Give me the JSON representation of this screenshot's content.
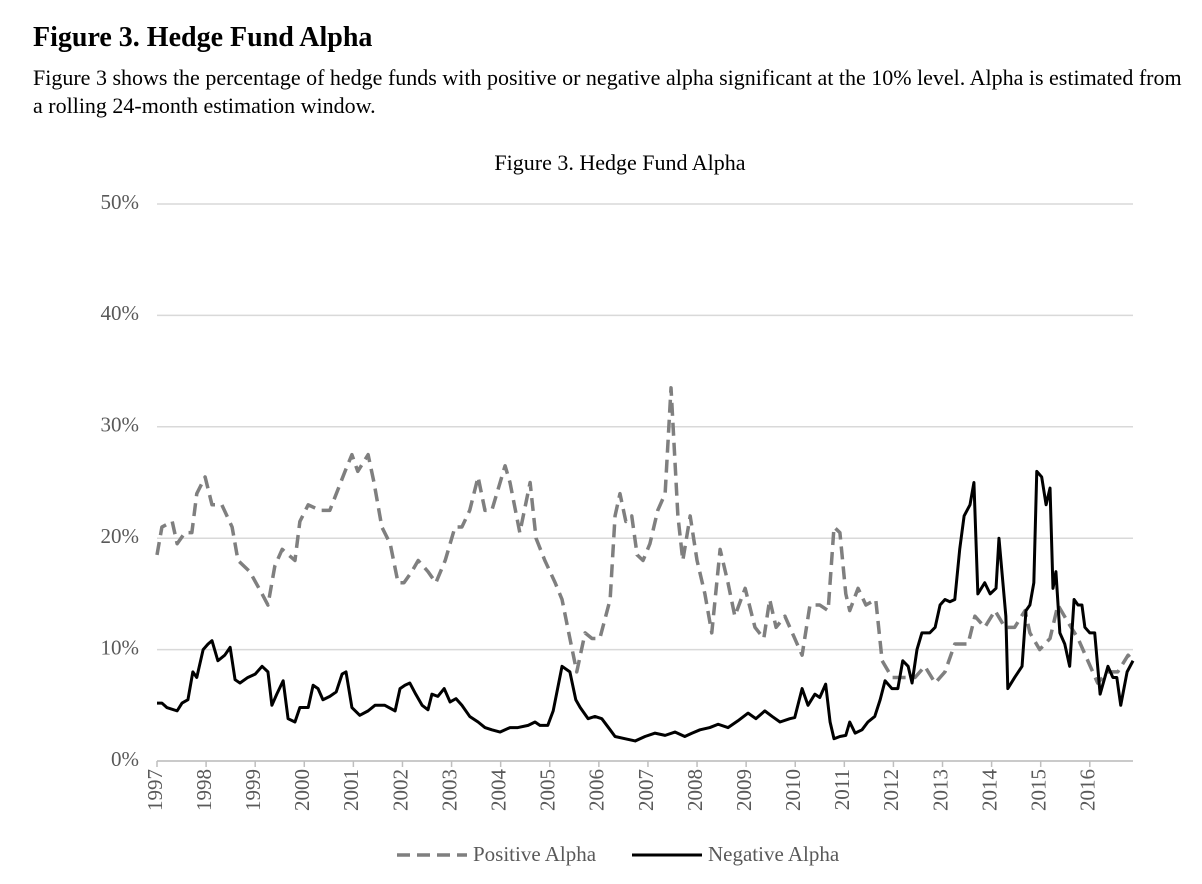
{
  "header": {
    "title": "Figure 3. Hedge Fund Alpha",
    "description": "Figure 3 shows the percentage of hedge funds with positive or negative alpha significant at the 10% level. Alpha is estimated from a rolling 24-month estimation window."
  },
  "chart_data": {
    "type": "line",
    "title": "Figure 3. Hedge Fund Alpha",
    "xlim": [
      1997,
      2016.88
    ],
    "xticks": [
      1997,
      1998,
      1999,
      2000,
      2001,
      2002,
      2003,
      2004,
      2005,
      2006,
      2007,
      2008,
      2009,
      2010,
      2011,
      2012,
      2013,
      2014,
      2015,
      2016
    ],
    "ylim": [
      0,
      50
    ],
    "yticks": [
      {
        "value": 0,
        "label": "0%"
      },
      {
        "value": 10,
        "label": "10%"
      },
      {
        "value": 20,
        "label": "20%"
      },
      {
        "value": 30,
        "label": "30%"
      },
      {
        "value": 40,
        "label": "40%"
      },
      {
        "value": 50,
        "label": "50%"
      }
    ],
    "grid": true,
    "legend": "bottom",
    "series": [
      {
        "name": "Positive Alpha",
        "color": "#7f7f7f",
        "line_style": "dashed",
        "x": [
          1997.0,
          1997.1,
          1997.31,
          1997.41,
          1997.57,
          1997.71,
          1997.81,
          1997.98,
          1998.12,
          1998.32,
          1998.53,
          1998.65,
          1998.89,
          1999.14,
          1999.26,
          1999.4,
          1999.55,
          1999.81,
          1999.91,
          2000.08,
          2000.32,
          2000.52,
          2000.83,
          2000.97,
          2001.09,
          2001.3,
          2001.42,
          2001.58,
          2001.75,
          2001.91,
          2002.03,
          2002.19,
          2002.32,
          2002.52,
          2002.68,
          2002.87,
          2003.07,
          2003.21,
          2003.37,
          2003.54,
          2003.68,
          2003.82,
          2004.09,
          2004.19,
          2004.39,
          2004.6,
          2004.72,
          2004.9,
          2005.11,
          2005.25,
          2005.41,
          2005.55,
          2005.72,
          2005.86,
          2006.02,
          2006.23,
          2006.33,
          2006.43,
          2006.55,
          2006.67,
          2006.78,
          2006.9,
          2007.04,
          2007.2,
          2007.35,
          2007.47,
          2007.61,
          2007.71,
          2007.86,
          2008.0,
          2008.16,
          2008.3,
          2008.47,
          2008.63,
          2008.77,
          2008.98,
          2009.18,
          2009.36,
          2009.48,
          2009.61,
          2009.79,
          2009.99,
          2010.14,
          2010.3,
          2010.5,
          2010.67,
          2010.79,
          2010.91,
          2011.03,
          2011.11,
          2011.28,
          2011.44,
          2011.64,
          2011.77,
          2011.97,
          2012.23,
          2012.44,
          2012.64,
          2012.85,
          2013.05,
          2013.25,
          2013.52,
          2013.66,
          2013.86,
          2014.07,
          2014.27,
          2014.47,
          2014.68,
          2014.78,
          2014.98,
          2015.19,
          2015.35,
          2015.55,
          2015.76,
          2015.96,
          2016.16,
          2016.37,
          2016.57,
          2016.78,
          2016.88
        ],
        "values": [
          18.5,
          21,
          21.5,
          19.5,
          20.5,
          20.5,
          24,
          25.5,
          23,
          23,
          21,
          18,
          17,
          15,
          14,
          17.5,
          19,
          18,
          21.5,
          23,
          22.5,
          22.5,
          26,
          27.5,
          26,
          27.5,
          25,
          21,
          19.5,
          16,
          16,
          17,
          18,
          17,
          16,
          18,
          21,
          21,
          22.5,
          25.5,
          22.5,
          22.5,
          26.5,
          25,
          20.5,
          25,
          20,
          18,
          16,
          14.5,
          11,
          8,
          11.5,
          11,
          11,
          14.5,
          22,
          24,
          21.5,
          22,
          18.5,
          18,
          19.5,
          22.5,
          24,
          33.5,
          22,
          18,
          22,
          18,
          15,
          11.5,
          19,
          16,
          13,
          15.5,
          12,
          11,
          14.5,
          12,
          13,
          11,
          9.5,
          14,
          14,
          13.5,
          21,
          20.5,
          15,
          13.5,
          15.5,
          14,
          14.5,
          9,
          7.5,
          7.5,
          7.5,
          8.5,
          7,
          8,
          10.5,
          10.5,
          13,
          12,
          13.5,
          12,
          12,
          13.5,
          11.5,
          10,
          11,
          14,
          12.5,
          11,
          9,
          7,
          8,
          8,
          9.5,
          9
        ]
      },
      {
        "name": "Negative Alpha",
        "color": "#000000",
        "line_style": "solid",
        "x": [
          1997.0,
          1997.1,
          1997.2,
          1997.41,
          1997.51,
          1997.63,
          1997.73,
          1997.81,
          1997.94,
          1998.04,
          1998.12,
          1998.24,
          1998.38,
          1998.49,
          1998.59,
          1998.69,
          1998.85,
          1999.0,
          1999.14,
          1999.26,
          1999.34,
          1999.44,
          1999.57,
          1999.67,
          1999.81,
          1999.91,
          2000.08,
          2000.18,
          2000.28,
          2000.38,
          2000.52,
          2000.65,
          2000.77,
          2000.85,
          2000.97,
          2001.13,
          2001.3,
          2001.44,
          2001.64,
          2001.85,
          2001.95,
          2002.05,
          2002.15,
          2002.27,
          2002.4,
          2002.52,
          2002.6,
          2002.72,
          2002.85,
          2002.97,
          2003.09,
          2003.21,
          2003.37,
          2003.54,
          2003.68,
          2003.82,
          2003.99,
          2004.19,
          2004.35,
          2004.56,
          2004.7,
          2004.8,
          2004.96,
          2005.07,
          2005.25,
          2005.41,
          2005.53,
          2005.62,
          2005.78,
          2005.92,
          2006.06,
          2006.23,
          2006.33,
          2006.53,
          2006.74,
          2006.94,
          2007.14,
          2007.35,
          2007.55,
          2007.75,
          2007.9,
          2008.06,
          2008.26,
          2008.43,
          2008.63,
          2008.83,
          2009.04,
          2009.2,
          2009.38,
          2009.53,
          2009.69,
          2009.89,
          2009.99,
          2010.14,
          2010.26,
          2010.4,
          2010.5,
          2010.62,
          2010.71,
          2010.79,
          2010.91,
          2011.03,
          2011.11,
          2011.22,
          2011.36,
          2011.48,
          2011.62,
          2011.73,
          2011.83,
          2011.97,
          2012.09,
          2012.19,
          2012.3,
          2012.38,
          2012.48,
          2012.58,
          2012.74,
          2012.85,
          2012.95,
          2013.05,
          2013.15,
          2013.25,
          2013.35,
          2013.44,
          2013.56,
          2013.64,
          2013.72,
          2013.86,
          2013.97,
          2014.09,
          2014.15,
          2014.23,
          2014.29,
          2014.33,
          2014.47,
          2014.62,
          2014.7,
          2014.78,
          2014.86,
          2014.92,
          2015.02,
          2015.11,
          2015.19,
          2015.25,
          2015.31,
          2015.39,
          2015.49,
          2015.59,
          2015.68,
          2015.76,
          2015.84,
          2015.9,
          2016.0,
          2016.1,
          2016.21,
          2016.37,
          2016.47,
          2016.55,
          2016.63,
          2016.76,
          2016.88
        ],
        "values": [
          5.2,
          5.2,
          4.8,
          4.5,
          5.2,
          5.5,
          8,
          7.5,
          10,
          10.5,
          10.8,
          9,
          9.5,
          10.2,
          7.3,
          7,
          7.5,
          7.8,
          8.5,
          8,
          5,
          6,
          7.2,
          3.8,
          3.5,
          4.8,
          4.8,
          6.8,
          6.5,
          5.5,
          5.8,
          6.2,
          7.8,
          8,
          4.8,
          4.1,
          4.5,
          5,
          5,
          4.5,
          6.5,
          6.8,
          7,
          6,
          5,
          4.6,
          6,
          5.8,
          6.5,
          5.3,
          5.6,
          5,
          4,
          3.5,
          3,
          2.8,
          2.6,
          3,
          3,
          3.2,
          3.5,
          3.2,
          3.2,
          4.5,
          8.5,
          8,
          5.5,
          4.8,
          3.8,
          4,
          3.8,
          2.8,
          2.2,
          2,
          1.8,
          2.2,
          2.5,
          2.3,
          2.6,
          2.2,
          2.5,
          2.8,
          3,
          3.3,
          3,
          3.6,
          4.3,
          3.8,
          4.5,
          4,
          3.5,
          3.8,
          3.9,
          6.5,
          5,
          6,
          5.7,
          6.9,
          3.5,
          2,
          2.2,
          2.3,
          3.5,
          2.5,
          2.8,
          3.5,
          4,
          5.5,
          7.2,
          6.5,
          6.5,
          9,
          8.5,
          7,
          10,
          11.5,
          11.5,
          12,
          14,
          14.5,
          14.3,
          14.5,
          19,
          22,
          23,
          25,
          15,
          16,
          15,
          15.5,
          20,
          16,
          13,
          6.5,
          7.5,
          8.5,
          13.5,
          14,
          16,
          26,
          25.5,
          23,
          24.5,
          15.5,
          17,
          11.5,
          10.5,
          8.5,
          14.5,
          14,
          14,
          12,
          11.5,
          11.5,
          6,
          8.5,
          7.5,
          7.5,
          5,
          8,
          9
        ]
      }
    ]
  }
}
